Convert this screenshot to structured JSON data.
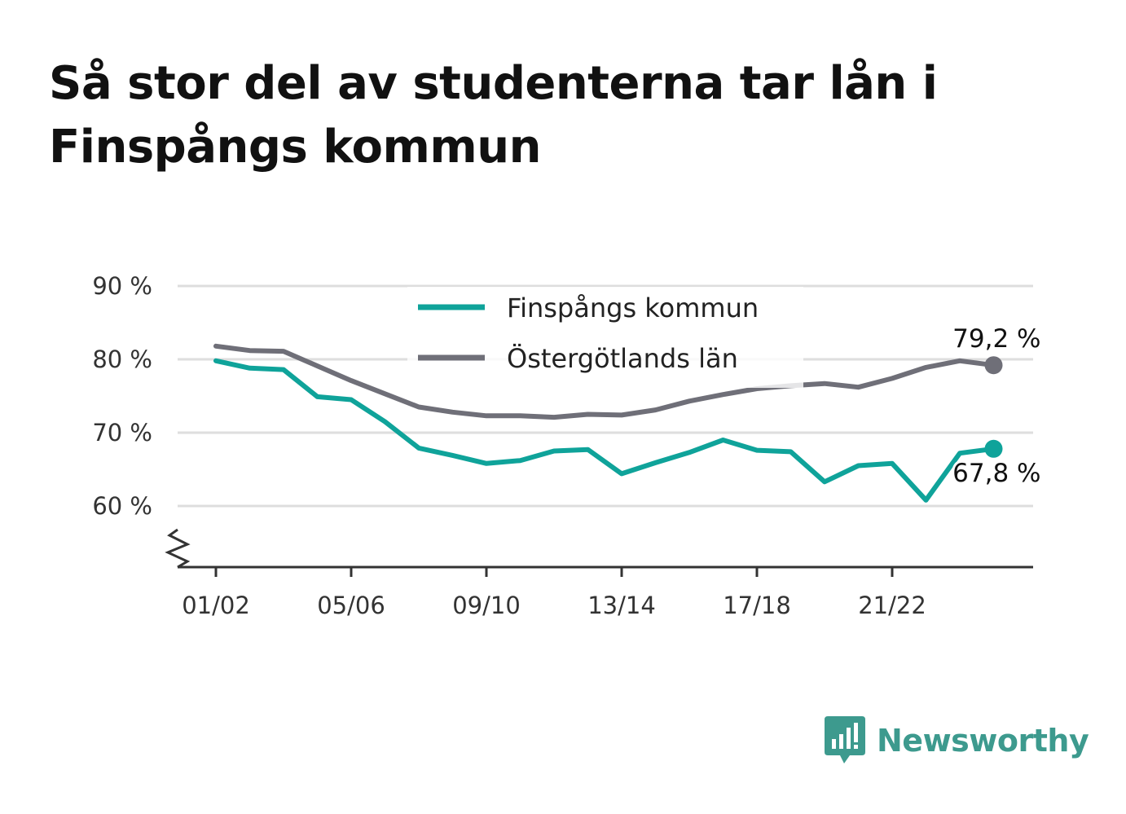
{
  "title": "Så stor del av studenterna tar lån i Finspångs kommun",
  "chart_data": {
    "type": "line",
    "x": [
      "01/02",
      "02/03",
      "03/04",
      "04/05",
      "05/06",
      "06/07",
      "07/08",
      "08/09",
      "09/10",
      "10/11",
      "11/12",
      "12/13",
      "13/14",
      "14/15",
      "15/16",
      "16/17",
      "17/18",
      "18/19",
      "19/20",
      "20/21",
      "21/22",
      "22/23",
      "23/24",
      "24/25"
    ],
    "x_tick_labels": [
      "01/02",
      "05/06",
      "09/10",
      "13/14",
      "17/18",
      "21/22"
    ],
    "y_ticks": [
      60,
      70,
      80,
      90
    ],
    "y_tick_labels": [
      "60 %",
      "70 %",
      "80 %",
      "90 %"
    ],
    "ylim": [
      52,
      90
    ],
    "y_axis_break": true,
    "grid": true,
    "legend_position": "top-center",
    "series": [
      {
        "name": "Finspångs kommun",
        "color": "#0fa39a",
        "values": [
          79.8,
          78.8,
          78.6,
          74.9,
          74.5,
          71.5,
          67.9,
          66.9,
          65.8,
          66.2,
          67.5,
          67.7,
          64.4,
          65.9,
          67.3,
          69.0,
          67.6,
          67.4,
          63.3,
          65.5,
          65.8,
          60.8,
          67.2,
          67.8
        ],
        "end_label": "67,8 %"
      },
      {
        "name": "Östergötlands län",
        "color": "#6f6f78",
        "values": [
          81.8,
          81.2,
          81.1,
          79.1,
          77.1,
          75.3,
          73.5,
          72.8,
          72.3,
          72.3,
          72.1,
          72.5,
          72.4,
          73.1,
          74.3,
          75.2,
          76.0,
          76.4,
          76.7,
          76.2,
          77.4,
          78.9,
          79.8,
          79.2
        ],
        "end_label": "79,2 %"
      }
    ]
  },
  "brand": {
    "name": "Newsworthy",
    "color": "#3d9a8e",
    "icon": "newsworthy-logo-icon"
  }
}
